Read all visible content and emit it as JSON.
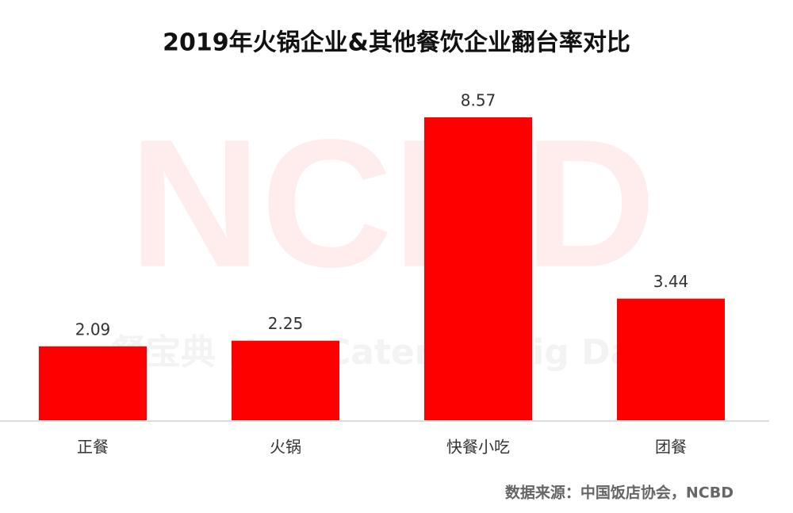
{
  "chart_data": {
    "type": "bar",
    "title": "2019年火锅企业&其他餐饮企业翻台率对比",
    "categories": [
      "正餐",
      "火锅",
      "快餐小吃",
      "团餐"
    ],
    "values": [
      2.09,
      2.25,
      8.57,
      3.44
    ],
    "color": "#ff0000",
    "watermark": "NCBD",
    "watermark_sub": "餐宝典 New Catering Big Data",
    "source": "数据来源：中国饭店协会，NCBD"
  }
}
